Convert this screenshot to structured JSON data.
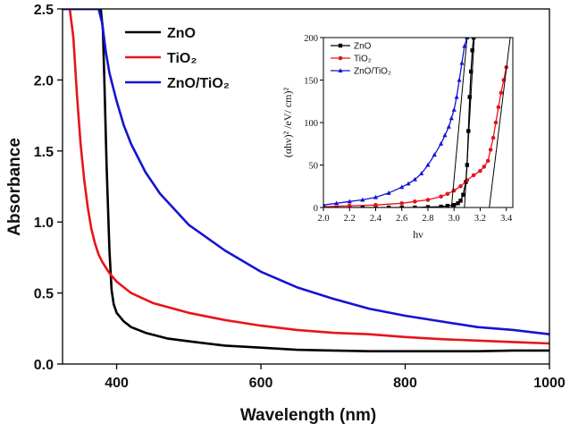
{
  "chart_data": [
    {
      "type": "line",
      "xlabel": "Wavelength (nm)",
      "ylabel": "Absorbance",
      "xlim": [
        325,
        1000
      ],
      "ylim": [
        0,
        2.5
      ],
      "xticks": [
        "400",
        "600",
        "800",
        "1000"
      ],
      "yticks": [
        "0.0",
        "0.5",
        "1.0",
        "1.5",
        "2.0",
        "2.5"
      ],
      "legend_position": "top-left",
      "series": [
        {
          "name": "ZnO",
          "color": "#000000",
          "x": [
            325,
            370,
            378,
            381,
            383,
            386,
            390,
            393,
            396,
            400,
            410,
            420,
            440,
            470,
            500,
            550,
            600,
            650,
            700,
            750,
            800,
            850,
            900,
            950,
            1000
          ],
          "y": [
            2.5,
            2.5,
            2.5,
            2.35,
            2.0,
            1.4,
            0.8,
            0.52,
            0.42,
            0.36,
            0.3,
            0.26,
            0.22,
            0.18,
            0.16,
            0.13,
            0.115,
            0.1,
            0.095,
            0.09,
            0.09,
            0.09,
            0.09,
            0.095,
            0.095
          ]
        },
        {
          "name": "TiO₂",
          "color": "#e8141b",
          "x": [
            325,
            335,
            340,
            345,
            350,
            355,
            360,
            365,
            370,
            375,
            380,
            385,
            390,
            400,
            420,
            450,
            500,
            550,
            600,
            650,
            700,
            750,
            800,
            850,
            900,
            950,
            1000
          ],
          "y": [
            2.5,
            2.5,
            2.3,
            1.9,
            1.55,
            1.3,
            1.1,
            0.95,
            0.85,
            0.77,
            0.72,
            0.68,
            0.64,
            0.58,
            0.5,
            0.43,
            0.36,
            0.31,
            0.27,
            0.24,
            0.22,
            0.21,
            0.19,
            0.175,
            0.165,
            0.155,
            0.145
          ]
        },
        {
          "name": "ZnO/TiO₂",
          "color": "#1414d2",
          "x": [
            325,
            375,
            380,
            385,
            390,
            395,
            400,
            410,
            420,
            440,
            460,
            500,
            550,
            600,
            650,
            700,
            750,
            800,
            850,
            900,
            950,
            1000
          ],
          "y": [
            2.5,
            2.5,
            2.4,
            2.2,
            2.05,
            1.95,
            1.85,
            1.68,
            1.55,
            1.35,
            1.2,
            0.98,
            0.8,
            0.65,
            0.54,
            0.46,
            0.39,
            0.34,
            0.3,
            0.26,
            0.24,
            0.21
          ]
        }
      ]
    },
    {
      "type": "line",
      "xlabel": "hν",
      "ylabel": "(αhν)² /eV/ cm)²",
      "xlim": [
        2.0,
        3.45
      ],
      "ylim": [
        0,
        200
      ],
      "xticks": [
        "2.0",
        "2.2",
        "2.4",
        "2.6",
        "2.8",
        "3.0",
        "3.2",
        "3.4"
      ],
      "yticks": [
        "0",
        "50",
        "100",
        "150",
        "200"
      ],
      "legend_position": "top-left",
      "series": [
        {
          "name": "ZnO",
          "color": "#000000",
          "marker": "square",
          "x": [
            2.0,
            2.1,
            2.2,
            2.3,
            2.4,
            2.5,
            2.6,
            2.7,
            2.8,
            2.9,
            2.95,
            3.0,
            3.03,
            3.05,
            3.07,
            3.09,
            3.1,
            3.11,
            3.12,
            3.13,
            3.14,
            3.15
          ],
          "y": [
            0,
            0,
            0,
            0,
            0,
            0,
            0,
            0,
            0.5,
            1,
            2,
            3,
            5,
            8,
            15,
            30,
            50,
            90,
            130,
            160,
            185,
            200
          ]
        },
        {
          "name": "TiO₂",
          "color": "#e8141b",
          "marker": "circle",
          "x": [
            2.0,
            2.2,
            2.4,
            2.6,
            2.7,
            2.8,
            2.9,
            2.95,
            3.0,
            3.05,
            3.1,
            3.15,
            3.2,
            3.23,
            3.26,
            3.28,
            3.3,
            3.32,
            3.34,
            3.36,
            3.38,
            3.4
          ],
          "y": [
            1,
            2,
            3,
            5,
            7,
            9,
            13,
            16,
            20,
            25,
            32,
            38,
            43,
            48,
            55,
            68,
            82,
            100,
            118,
            135,
            150,
            165
          ]
        },
        {
          "name": "ZnO/TiO₂",
          "color": "#1414d2",
          "marker": "triangle",
          "x": [
            2.0,
            2.1,
            2.2,
            2.3,
            2.4,
            2.5,
            2.6,
            2.65,
            2.7,
            2.75,
            2.8,
            2.85,
            2.9,
            2.93,
            2.96,
            2.98,
            3.0,
            3.02,
            3.04,
            3.06,
            3.08,
            3.1
          ],
          "y": [
            3,
            5,
            7,
            9,
            12,
            17,
            24,
            28,
            33,
            40,
            50,
            62,
            75,
            85,
            95,
            105,
            115,
            130,
            150,
            170,
            190,
            200
          ]
        }
      ],
      "fit_lines": [
        {
          "series": "ZnO",
          "x": [
            3.08,
            3.155
          ],
          "y": [
            0,
            200
          ]
        },
        {
          "series": "TiO₂",
          "x": [
            3.27,
            3.43
          ],
          "y": [
            0,
            200
          ]
        },
        {
          "series": "ZnO/TiO₂",
          "x": [
            2.98,
            3.1
          ],
          "y": [
            0,
            200
          ]
        }
      ]
    }
  ]
}
